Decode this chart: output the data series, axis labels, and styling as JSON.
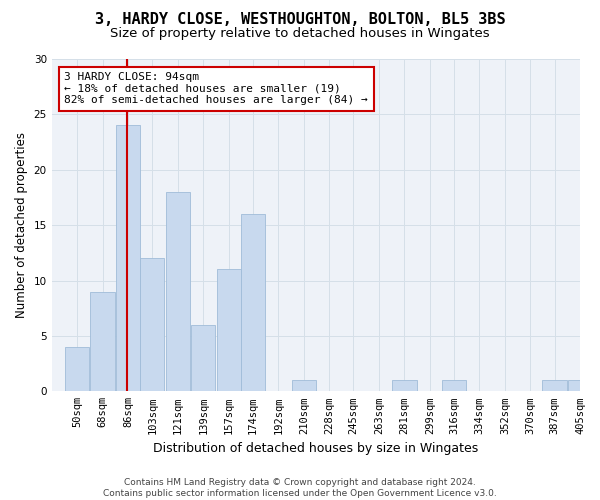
{
  "title_line1": "3, HARDY CLOSE, WESTHOUGHTON, BOLTON, BL5 3BS",
  "title_line2": "Size of property relative to detached houses in Wingates",
  "xlabel": "Distribution of detached houses by size in Wingates",
  "ylabel": "Number of detached properties",
  "bin_labels": [
    "50sqm",
    "68sqm",
    "86sqm",
    "103sqm",
    "121sqm",
    "139sqm",
    "157sqm",
    "174sqm",
    "192sqm",
    "210sqm",
    "228sqm",
    "245sqm",
    "263sqm",
    "281sqm",
    "299sqm",
    "316sqm",
    "334sqm",
    "352sqm",
    "370sqm",
    "387sqm",
    "405sqm"
  ],
  "bin_edges": [
    50,
    68,
    86,
    103,
    121,
    139,
    157,
    174,
    192,
    210,
    228,
    245,
    263,
    281,
    299,
    316,
    334,
    352,
    370,
    387,
    405
  ],
  "values": [
    4,
    9,
    24,
    12,
    18,
    6,
    11,
    16,
    0,
    1,
    0,
    0,
    0,
    1,
    0,
    1,
    0,
    0,
    0,
    1,
    1
  ],
  "bar_color": "#c8d9ee",
  "bar_edge_color": "#a0bcd8",
  "grid_color": "#d5dfe8",
  "plot_bg_color": "#eef2f8",
  "red_line_x": 94,
  "annotation_title": "3 HARDY CLOSE: 94sqm",
  "annotation_line1": "← 18% of detached houses are smaller (19)",
  "annotation_line2": "82% of semi-detached houses are larger (84) →",
  "annotation_box_color": "#ffffff",
  "annotation_box_edge": "#cc0000",
  "footer_line1": "Contains HM Land Registry data © Crown copyright and database right 2024.",
  "footer_line2": "Contains public sector information licensed under the Open Government Licence v3.0.",
  "ylim": [
    0,
    30
  ],
  "yticks": [
    0,
    5,
    10,
    15,
    20,
    25,
    30
  ],
  "title_fontsize": 11,
  "subtitle_fontsize": 9.5,
  "axis_label_fontsize": 8.5,
  "tick_fontsize": 7.5,
  "footer_fontsize": 6.5,
  "annotation_fontsize": 8
}
